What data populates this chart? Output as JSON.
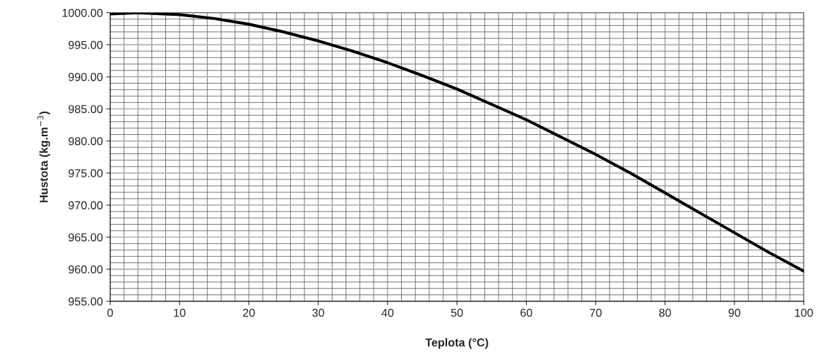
{
  "chart_data": {
    "type": "line",
    "xlabel": "Teplota (°C)",
    "ylabel": "Hustota (kg.m$^{−3}$)",
    "x": [
      0,
      4,
      10,
      15,
      20,
      25,
      30,
      35,
      40,
      45,
      50,
      55,
      60,
      65,
      70,
      75,
      80,
      85,
      90,
      95,
      100
    ],
    "series": [
      {
        "color": "#000000",
        "values": [
          999.8,
          1000.0,
          999.7,
          999.1,
          998.2,
          997.0,
          995.6,
          994.0,
          992.2,
          990.2,
          988.1,
          985.7,
          983.3,
          980.6,
          977.9,
          975.0,
          971.9,
          968.8,
          965.7,
          962.6,
          959.7
        ]
      }
    ],
    "xlim": [
      0,
      100
    ],
    "xticks": [
      0,
      10,
      20,
      30,
      40,
      50,
      60,
      70,
      80,
      90,
      100
    ],
    "ylim": [
      955,
      1000
    ],
    "yticks": [
      {
        "value": 955,
        "label": "955.00"
      },
      {
        "value": 960,
        "label": "960.00"
      },
      {
        "value": 965,
        "label": "965.00"
      },
      {
        "value": 970,
        "label": "970.00"
      },
      {
        "value": 975,
        "label": "975.00"
      },
      {
        "value": 980,
        "label": "980.00"
      },
      {
        "value": 985,
        "label": "985.00"
      },
      {
        "value": 990,
        "label": "990.00"
      },
      {
        "value": 995,
        "label": "995.00"
      },
      {
        "value": 1000,
        "label": "1000.00"
      }
    ],
    "grid": true,
    "legend": false,
    "marker": "none",
    "line_style": "solid"
  }
}
